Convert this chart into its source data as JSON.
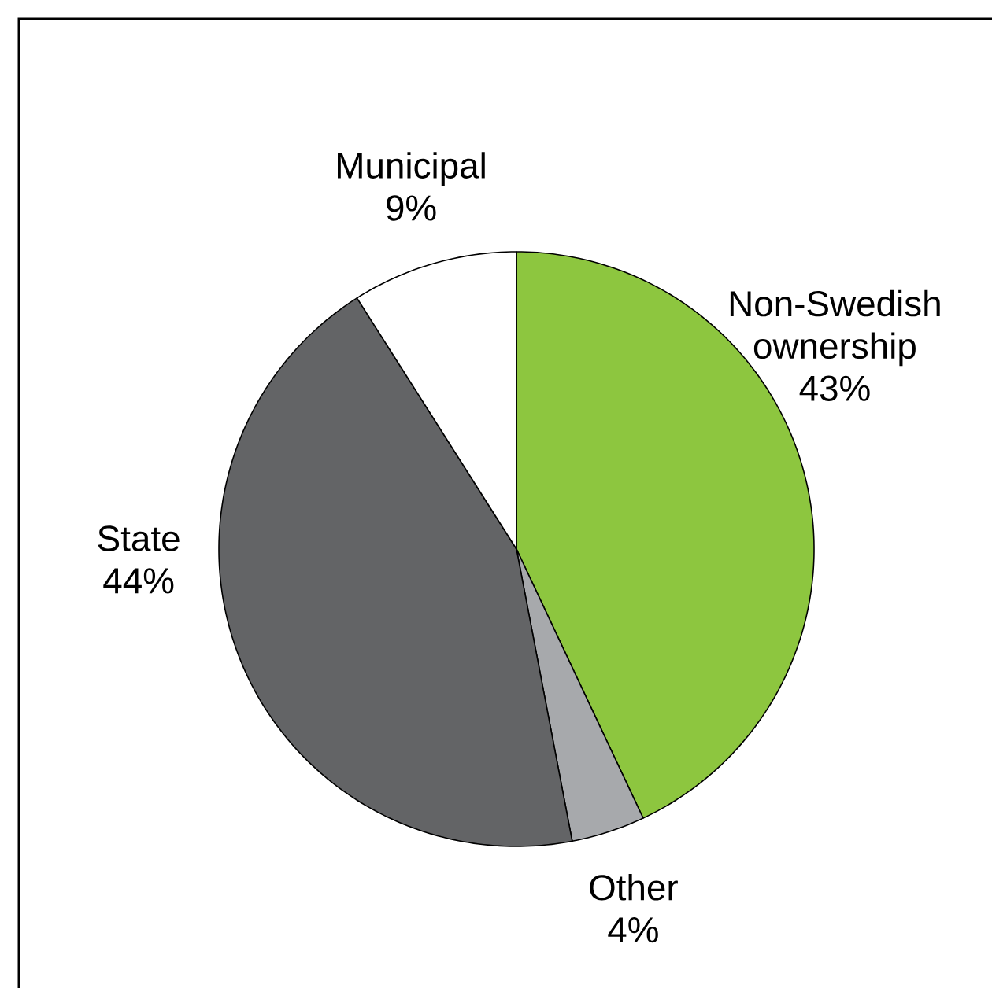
{
  "chart_data": {
    "type": "pie",
    "categories": [
      "Non-Swedish ownership",
      "Other",
      "State",
      "Municipal"
    ],
    "values": [
      43,
      4,
      44,
      9
    ],
    "colors": [
      "#8dc63f",
      "#a7a9ac",
      "#636466",
      "#ffffff"
    ],
    "value_labels": [
      "43%",
      "4%",
      "44%",
      "9%"
    ]
  }
}
